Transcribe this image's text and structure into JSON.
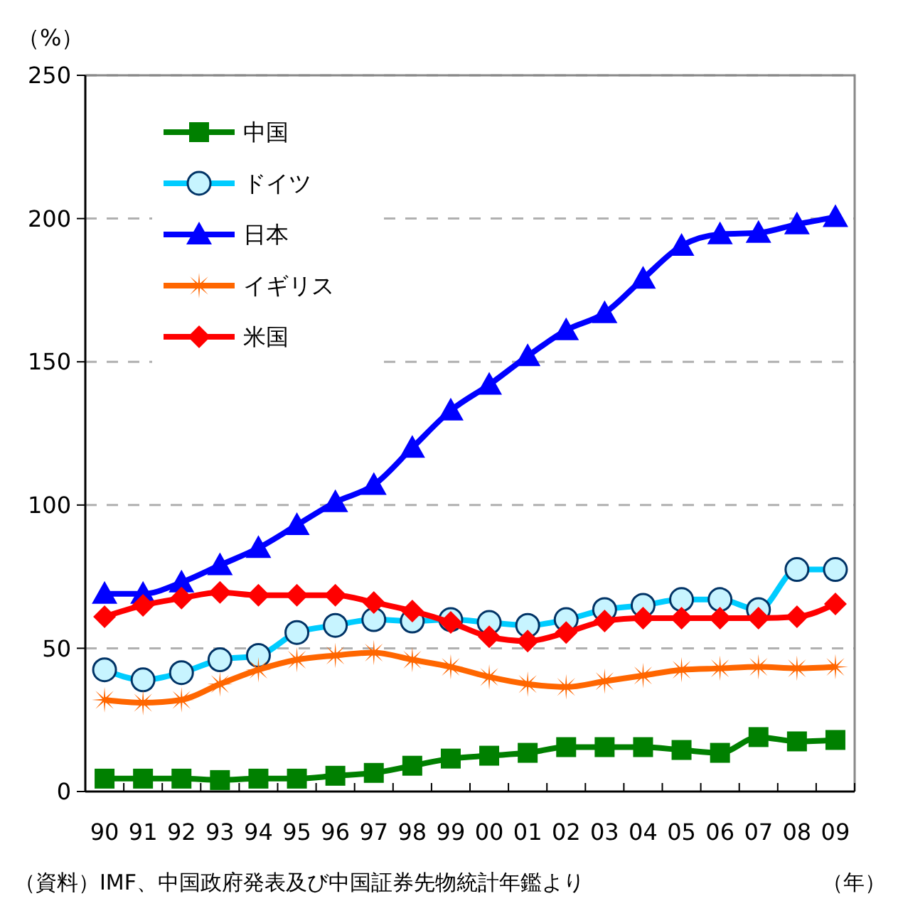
{
  "chart_data": {
    "type": "line",
    "ylabel": "（%）",
    "xlabel": "（年）",
    "categories": [
      "90",
      "91",
      "92",
      "93",
      "94",
      "95",
      "96",
      "97",
      "98",
      "99",
      "00",
      "01",
      "02",
      "03",
      "04",
      "05",
      "06",
      "07",
      "08",
      "09"
    ],
    "series": [
      {
        "name": "中国",
        "color": "#008000",
        "marker": "square",
        "values": [
          4.5,
          4.5,
          4.5,
          4,
          4.5,
          4.5,
          5.5,
          6.5,
          9,
          11.5,
          12.5,
          13.5,
          15.5,
          15.5,
          15.5,
          14.5,
          13.5,
          19,
          17.5,
          18
        ]
      },
      {
        "name": "ドイツ",
        "color": "#00ccff",
        "marker": "circle",
        "values": [
          42.5,
          39,
          41.5,
          46,
          47.5,
          55.5,
          58,
          60,
          59.5,
          60,
          59,
          58,
          60,
          63.5,
          65,
          67,
          67,
          63.5,
          77.5,
          77.5
        ]
      },
      {
        "name": "日本",
        "color": "#0000ff",
        "marker": "triangle",
        "values": [
          69,
          69,
          73,
          79,
          85,
          93,
          101,
          107,
          120,
          133,
          142,
          152,
          161,
          167,
          179,
          190.5,
          194.5,
          195,
          198,
          200.5
        ]
      },
      {
        "name": "イギリス",
        "color": "#ff6600",
        "marker": "star",
        "values": [
          32,
          31,
          32,
          37.5,
          42.5,
          46,
          47.5,
          48.5,
          46,
          43.5,
          40,
          37.5,
          36.5,
          38.5,
          40.5,
          42.5,
          43,
          43.5,
          43,
          43.5
        ]
      },
      {
        "name": "米国",
        "color": "#ff0000",
        "marker": "diamond",
        "values": [
          61,
          65,
          67.5,
          69.5,
          68.5,
          68.5,
          68.5,
          66,
          63,
          59,
          54,
          52.5,
          55.5,
          59.5,
          60.5,
          60.5,
          60.5,
          60.5,
          61,
          65.5
        ]
      }
    ],
    "ylim": [
      0,
      250
    ],
    "yticks": [
      0,
      50,
      100,
      150,
      200,
      250
    ],
    "grid": "y",
    "legend": "top left",
    "line_style": "solid",
    "annotations": [
      "（資料）IMF、中国政府発表及び中国証券先物統計年鑑より"
    ]
  }
}
